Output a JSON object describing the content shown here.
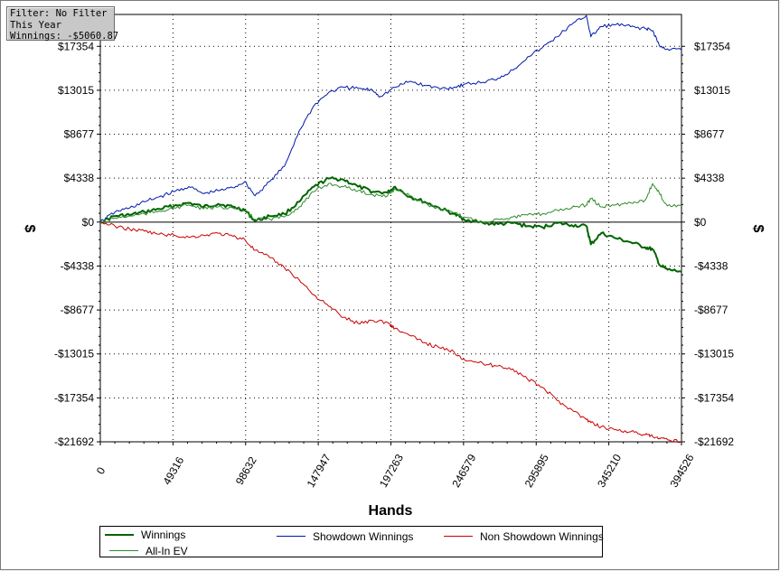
{
  "filter_box": {
    "line1": "Filter: No Filter",
    "line2": "This Year",
    "line3": "Winnings: -$5060.87"
  },
  "chart_data": {
    "type": "line",
    "title": "",
    "xlabel": "Hands",
    "ylabel": "$",
    "xlim": [
      0,
      394526
    ],
    "ylim": [
      -21692,
      20500
    ],
    "x_ticks": [
      0,
      49316,
      98632,
      147947,
      197263,
      246579,
      295895,
      345210,
      394526
    ],
    "y_ticks": [
      -21692,
      -17354,
      -13015,
      -8677,
      -4338,
      0,
      4338,
      8677,
      13015,
      17354
    ],
    "y_tick_labels": [
      "-$21692",
      "-$17354",
      "-$13015",
      "-$8677",
      "-$4338",
      "$0",
      "$4338",
      "$8677",
      "$13015",
      "$17354"
    ],
    "grid": true,
    "legend_position": "bottom",
    "series": [
      {
        "name": "Winnings",
        "color": "#006400",
        "x": [
          0,
          10000,
          20000,
          30000,
          40000,
          50000,
          60000,
          70000,
          80000,
          90000,
          98000,
          105000,
          115000,
          125000,
          135000,
          145000,
          155000,
          165000,
          175000,
          185000,
          195000,
          200000,
          210000,
          220000,
          230000,
          240000,
          246579,
          260000,
          270000,
          280000,
          290000,
          300000,
          310000,
          320000,
          330000,
          333000,
          340000,
          350000,
          360000,
          370000,
          375000,
          380000,
          385000,
          394526
        ],
        "y": [
          0,
          600,
          700,
          1000,
          1300,
          1600,
          1900,
          1500,
          1800,
          1500,
          1200,
          100,
          600,
          800,
          2000,
          3500,
          4300,
          4200,
          3500,
          3000,
          2900,
          3500,
          2500,
          2000,
          1400,
          800,
          300,
          -100,
          -200,
          -100,
          -400,
          -500,
          -100,
          -300,
          -400,
          -2200,
          -1100,
          -1600,
          -2000,
          -2500,
          -2700,
          -4300,
          -4700,
          -4900
        ]
      },
      {
        "name": "Showdown Winnings",
        "color": "#0018a8",
        "x": [
          0,
          10000,
          20000,
          30000,
          40000,
          50000,
          60000,
          70000,
          80000,
          90000,
          98000,
          105000,
          115000,
          125000,
          135000,
          145000,
          155000,
          165000,
          175000,
          185000,
          190000,
          200000,
          210000,
          220000,
          230000,
          240000,
          246579,
          260000,
          270000,
          280000,
          290000,
          300000,
          310000,
          320000,
          330000,
          333000,
          340000,
          350000,
          360000,
          370000,
          375000,
          380000,
          385000,
          394526
        ],
        "y": [
          0,
          1000,
          1400,
          2000,
          2500,
          3000,
          3500,
          2800,
          3100,
          3400,
          4000,
          2600,
          4000,
          5500,
          9000,
          11500,
          12800,
          13300,
          13200,
          13000,
          12400,
          13300,
          13900,
          13500,
          13200,
          13300,
          13600,
          13800,
          14200,
          15000,
          16300,
          17200,
          18300,
          19500,
          20400,
          18300,
          19300,
          19500,
          19300,
          19100,
          18900,
          17300,
          17100,
          17000
        ]
      },
      {
        "name": "Non Showdown Winnings",
        "color": "#cc0000",
        "x": [
          0,
          10000,
          20000,
          30000,
          40000,
          50000,
          60000,
          70000,
          80000,
          90000,
          98000,
          105000,
          115000,
          125000,
          135000,
          145000,
          155000,
          165000,
          175000,
          185000,
          195000,
          200000,
          210000,
          220000,
          230000,
          240000,
          246579,
          260000,
          270000,
          280000,
          290000,
          300000,
          310000,
          320000,
          330000,
          333000,
          340000,
          350000,
          360000,
          370000,
          375000,
          380000,
          385000,
          394526
        ],
        "y": [
          0,
          -400,
          -700,
          -900,
          -1200,
          -1300,
          -1500,
          -1300,
          -1100,
          -1400,
          -1700,
          -2800,
          -3500,
          -4500,
          -5700,
          -7200,
          -8300,
          -9400,
          -10000,
          -9700,
          -9900,
          -10500,
          -11200,
          -11900,
          -12400,
          -12800,
          -13500,
          -14000,
          -14200,
          -14500,
          -15500,
          -16300,
          -17600,
          -18500,
          -19500,
          -19800,
          -20200,
          -20500,
          -20700,
          -21000,
          -21200,
          -21400,
          -21500,
          -21650
        ]
      },
      {
        "name": "All-In EV",
        "color": "#2e8b2e",
        "x": [
          0,
          10000,
          20000,
          30000,
          40000,
          50000,
          60000,
          70000,
          80000,
          90000,
          98000,
          105000,
          115000,
          125000,
          135000,
          145000,
          155000,
          165000,
          175000,
          185000,
          195000,
          200000,
          210000,
          220000,
          230000,
          240000,
          246579,
          260000,
          270000,
          280000,
          290000,
          300000,
          310000,
          320000,
          330000,
          333000,
          340000,
          350000,
          360000,
          370000,
          375000,
          380000,
          385000,
          394526
        ],
        "y": [
          0,
          400,
          600,
          800,
          1100,
          1400,
          1700,
          1300,
          1500,
          1400,
          1100,
          300,
          300,
          500,
          1500,
          3000,
          3800,
          3500,
          3100,
          2700,
          2600,
          3300,
          2600,
          1900,
          1300,
          900,
          500,
          0,
          300,
          500,
          700,
          800,
          1200,
          1400,
          1700,
          2300,
          1500,
          1700,
          1900,
          2200,
          3800,
          2700,
          1600,
          1700
        ]
      }
    ]
  }
}
